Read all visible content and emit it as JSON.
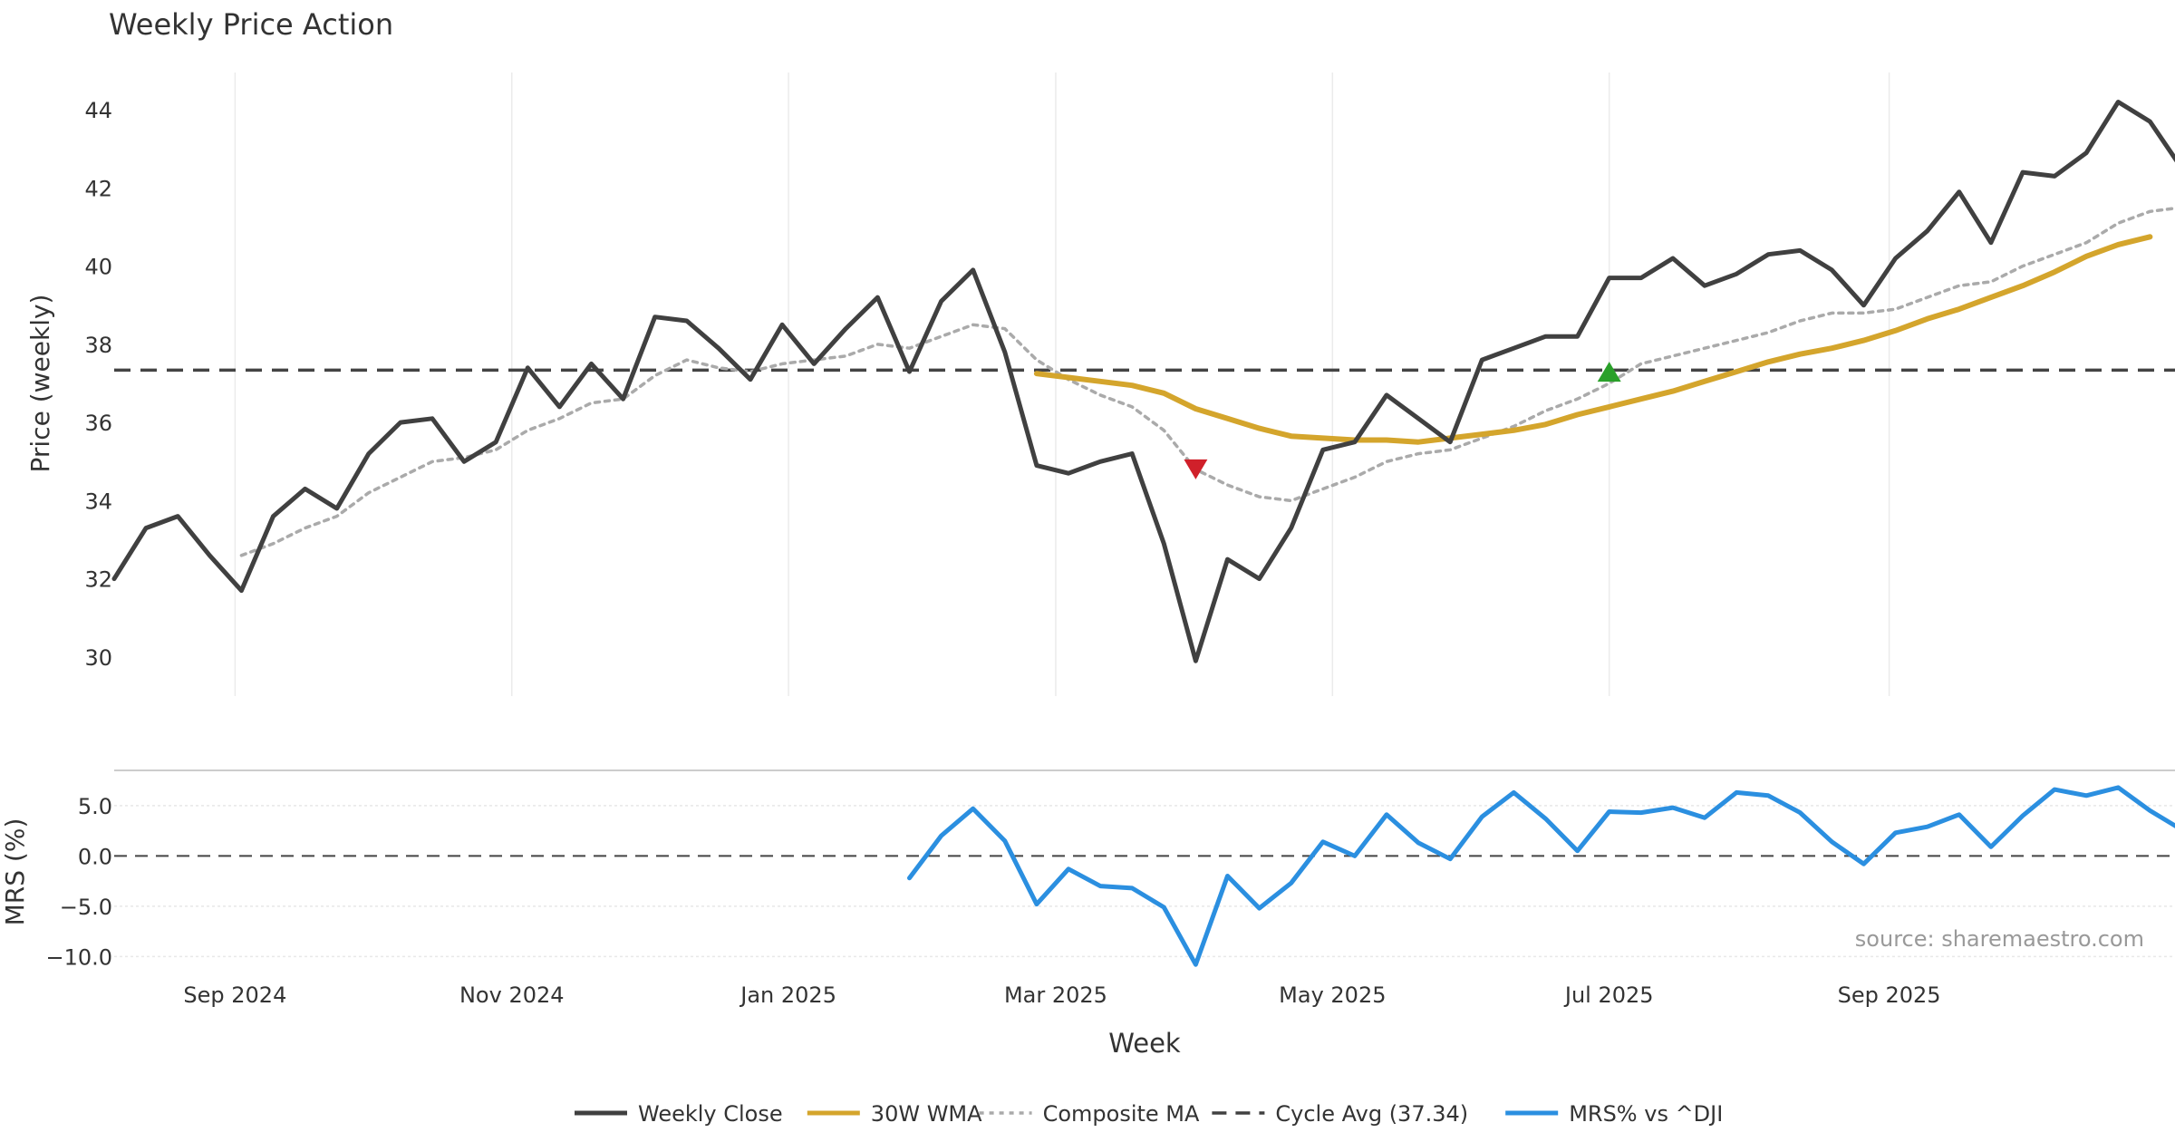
{
  "chart_data": {
    "title": "Weekly Price Action",
    "source": "source: sharemaestro.com",
    "xlabel": "Week",
    "price_panel": {
      "type": "line",
      "ylabel": "Price (weekly)",
      "ylim": [
        29,
        45
      ],
      "yticks": [
        30,
        32,
        34,
        36,
        38,
        40,
        42,
        44
      ],
      "cycle_avg": 37.34,
      "series": [
        {
          "name": "Weekly Close",
          "color": "#404040",
          "values": [
            32.0,
            33.3,
            33.6,
            32.6,
            31.7,
            33.6,
            34.3,
            33.8,
            35.2,
            36.0,
            36.1,
            35.0,
            35.5,
            37.4,
            36.4,
            37.5,
            36.6,
            38.7,
            38.6,
            37.9,
            37.1,
            38.5,
            37.5,
            38.4,
            39.2,
            37.3,
            39.1,
            39.9,
            37.8,
            34.9,
            34.7,
            35.0,
            35.2,
            32.9,
            29.9,
            32.5,
            32.0,
            33.3,
            35.3,
            35.5,
            36.7,
            36.1,
            35.5,
            37.6,
            37.9,
            38.2,
            38.2,
            39.7,
            39.7,
            40.2,
            39.5,
            39.8,
            40.3,
            40.4,
            39.9,
            39.0,
            40.2,
            40.9,
            41.9,
            40.6,
            42.4,
            42.3,
            42.9,
            44.2,
            43.7,
            42.5
          ]
        },
        {
          "name": "30W WMA",
          "color": "#D4A52C",
          "start_index": 29,
          "values": [
            37.25,
            37.15,
            37.05,
            36.95,
            36.75,
            36.35,
            36.1,
            35.85,
            35.65,
            35.6,
            35.55,
            35.55,
            35.5,
            35.6,
            35.7,
            35.8,
            35.95,
            36.2,
            36.4,
            36.6,
            36.8,
            37.05,
            37.3,
            37.55,
            37.75,
            37.9,
            38.1,
            38.35,
            38.65,
            38.9,
            39.2,
            39.5,
            39.85,
            40.25,
            40.55,
            40.75
          ]
        },
        {
          "name": "Composite MA",
          "color": "#AAAAAA",
          "start_index": 4,
          "values": [
            32.6,
            32.9,
            33.3,
            33.6,
            34.2,
            34.6,
            35.0,
            35.1,
            35.3,
            35.8,
            36.1,
            36.5,
            36.6,
            37.2,
            37.6,
            37.4,
            37.3,
            37.5,
            37.6,
            37.7,
            38.0,
            37.9,
            38.2,
            38.5,
            38.4,
            37.6,
            37.1,
            36.7,
            36.4,
            35.8,
            34.8,
            34.4,
            34.1,
            34.0,
            34.3,
            34.6,
            35.0,
            35.2,
            35.3,
            35.6,
            35.9,
            36.3,
            36.6,
            37.0,
            37.5,
            37.7,
            37.9,
            38.1,
            38.3,
            38.6,
            38.8,
            38.8,
            38.9,
            39.2,
            39.5,
            39.6,
            40.0,
            40.3,
            40.6,
            41.1,
            41.4,
            41.5
          ]
        }
      ],
      "markers": [
        {
          "type": "down",
          "index": 34,
          "value": 34.8,
          "color": "#D0202A"
        },
        {
          "type": "up",
          "index": 47,
          "value": 37.3,
          "color": "#2AA02A"
        }
      ]
    },
    "mrs_panel": {
      "type": "line",
      "ylabel": "MRS (%)",
      "ylim": [
        -11.5,
        8.5
      ],
      "yticks": [
        5.0,
        0.0,
        -5.0,
        -10.0
      ],
      "ytick_labels": [
        "5.0",
        "0.0",
        "−5.0",
        "−10.0"
      ],
      "series": [
        {
          "name": "MRS% vs ^DJI",
          "color": "#2B8FE0",
          "start_index": 25,
          "values": [
            -2.2,
            2.0,
            4.7,
            1.5,
            -4.8,
            -1.3,
            -3.0,
            -3.2,
            -5.1,
            -10.8,
            -2.0,
            -5.2,
            -2.7,
            1.4,
            0.0,
            4.1,
            1.3,
            -0.3,
            3.9,
            6.3,
            3.7,
            0.5,
            4.4,
            4.3,
            4.8,
            3.8,
            6.3,
            6.0,
            4.3,
            1.4,
            -0.8,
            2.3,
            2.9,
            4.1,
            0.9,
            4.0,
            6.6,
            6.0,
            6.8,
            4.5,
            2.6
          ]
        }
      ]
    },
    "x_axis": {
      "type": "date",
      "first_week": "2024-08-11",
      "ticks": [
        {
          "label": "Sep 2024",
          "index": 3.8
        },
        {
          "label": "Nov 2024",
          "index": 12.5
        },
        {
          "label": "Jan 2025",
          "index": 21.2
        },
        {
          "label": "Mar 2025",
          "index": 29.6
        },
        {
          "label": "May 2025",
          "index": 38.3
        },
        {
          "label": "Jul 2025",
          "index": 47.0
        },
        {
          "label": "Sep 2025",
          "index": 55.8
        }
      ]
    },
    "legend": {
      "placement": "bottom-center",
      "entries": [
        {
          "label": "Weekly Close",
          "color": "#404040",
          "style": "solid"
        },
        {
          "label": "30W WMA",
          "color": "#D4A52C",
          "style": "solid"
        },
        {
          "label": "Composite MA",
          "color": "#AAAAAA",
          "style": "dotted"
        },
        {
          "label": "Cycle Avg (37.34)",
          "color": "#404040",
          "style": "dashed"
        },
        {
          "label": "MRS% vs ^DJI",
          "color": "#2B8FE0",
          "style": "solid"
        }
      ]
    }
  }
}
